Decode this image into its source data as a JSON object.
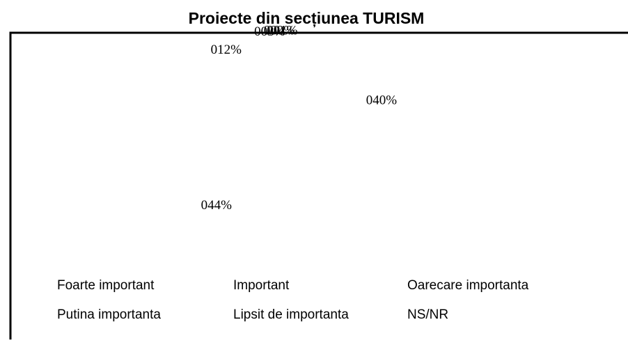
{
  "chart_data": {
    "type": "pie",
    "title": "Proiecte din secțiunea TURISM",
    "categories": [
      "Foarte important",
      "Important",
      "Oarecare importanta",
      "Putina importanta",
      "Lipsit de importanta",
      "NS/NR"
    ],
    "values": [
      40,
      44,
      12,
      3,
      0,
      1
    ],
    "value_labels": [
      "040%",
      "044%",
      "012%",
      "003%",
      "000%",
      "001%"
    ],
    "color": "#ffffff",
    "legend": "bottom"
  }
}
